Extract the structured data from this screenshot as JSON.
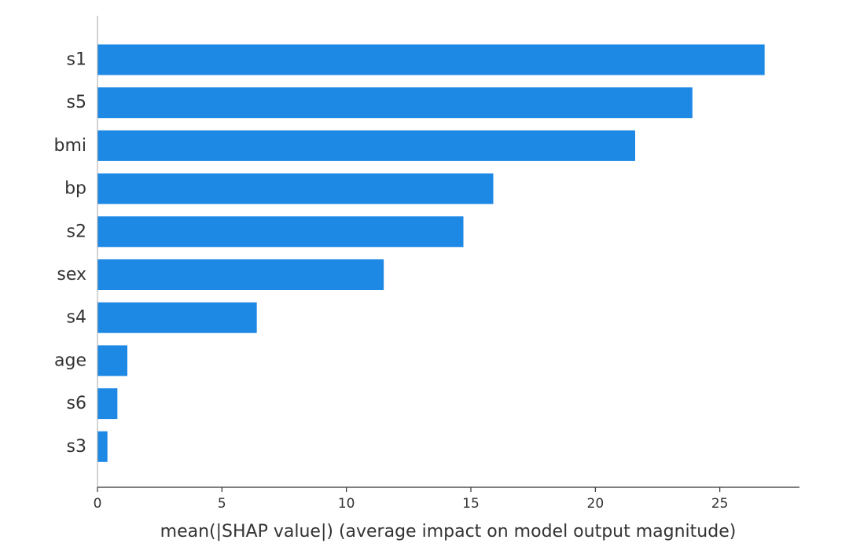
{
  "chart_data": {
    "type": "bar",
    "orientation": "horizontal",
    "categories": [
      "s1",
      "s5",
      "bmi",
      "bp",
      "s2",
      "sex",
      "s4",
      "age",
      "s6",
      "s3"
    ],
    "values": [
      26.8,
      23.9,
      21.6,
      15.9,
      14.7,
      11.5,
      6.4,
      1.2,
      0.8,
      0.4
    ],
    "xlabel": "mean(|SHAP value|) (average impact on model output magnitude)",
    "ylabel": "",
    "title": "",
    "xlim": [
      0,
      28.2
    ],
    "xticks": [
      0,
      5,
      10,
      15,
      20,
      25
    ],
    "xtick_labels": [
      "0",
      "5",
      "10",
      "15",
      "20",
      "25"
    ],
    "grid": false,
    "bar_color": "#1E88E5",
    "axis_color": "#333333"
  }
}
